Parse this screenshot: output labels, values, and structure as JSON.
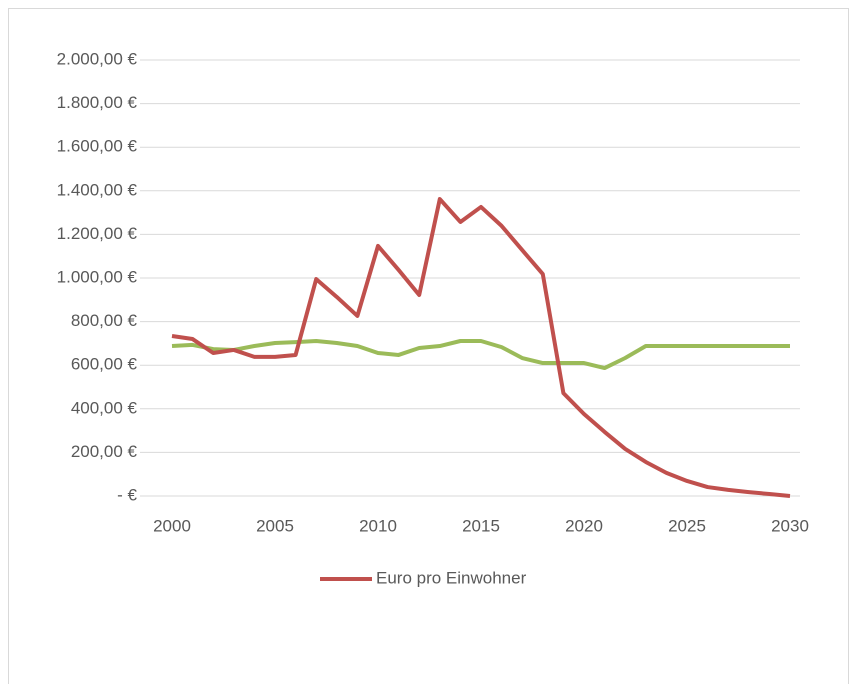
{
  "chart_data": {
    "type": "line",
    "x": [
      2000,
      2001,
      2002,
      2003,
      2004,
      2005,
      2006,
      2007,
      2008,
      2009,
      2010,
      2011,
      2012,
      2013,
      2014,
      2015,
      2016,
      2017,
      2018,
      2019,
      2020,
      2021,
      2022,
      2023,
      2024,
      2025,
      2026,
      2027,
      2028,
      2029,
      2030
    ],
    "series": [
      {
        "name": "Euro pro Einwohner",
        "color": "#c0504d",
        "values": [
          734,
          720,
          656,
          670,
          638,
          638,
          647,
          995,
          913,
          826,
          1147,
          1037,
          922,
          1362,
          1257,
          1326,
          1239,
          1128,
          1018,
          472,
          376,
          294,
          216,
          156,
          106,
          69,
          41,
          28,
          18,
          9,
          0
        ]
      },
      {
        "color": "#9bbb59",
        "values": [
          688,
          693,
          674,
          670,
          688,
          702,
          706,
          711,
          702,
          688,
          656,
          647,
          679,
          688,
          711,
          711,
          683,
          633,
          610,
          610,
          610,
          587,
          633,
          688,
          688,
          688,
          688,
          688,
          688,
          688,
          688
        ]
      }
    ],
    "xlim": [
      2000,
      2030
    ],
    "xticks": [
      2000,
      2005,
      2010,
      2015,
      2020,
      2025,
      2030
    ],
    "ylim": [
      0,
      2000
    ],
    "yticks": [
      {
        "value": 0,
        "label": "-   €"
      },
      {
        "value": 200,
        "label": "200,00 €"
      },
      {
        "value": 400,
        "label": "400,00 €"
      },
      {
        "value": 600,
        "label": "600,00 €"
      },
      {
        "value": 800,
        "label": "800,00 €"
      },
      {
        "value": 1000,
        "label": "1.000,00 €"
      },
      {
        "value": 1200,
        "label": "1.200,00 €"
      },
      {
        "value": 1400,
        "label": "1.400,00 €"
      },
      {
        "value": 1600,
        "label": "1.600,00 €"
      },
      {
        "value": 1800,
        "label": "1.800,00 €"
      },
      {
        "value": 2000,
        "label": "2.000,00 €"
      }
    ],
    "grid": true,
    "legend": "bottom"
  }
}
